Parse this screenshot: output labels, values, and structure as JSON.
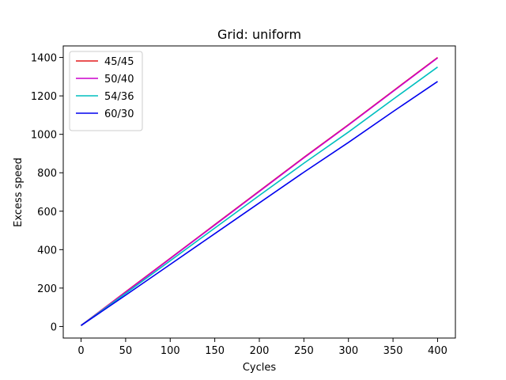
{
  "chart_data": {
    "type": "line",
    "title": "Grid: uniform",
    "xlabel": "Cycles",
    "ylabel": "Excess speed",
    "xlim": [
      -20,
      420
    ],
    "ylim": [
      -60,
      1460
    ],
    "xticks": [
      0,
      50,
      100,
      150,
      200,
      250,
      300,
      350,
      400
    ],
    "yticks": [
      0,
      200,
      400,
      600,
      800,
      1000,
      1200,
      1400
    ],
    "grid": false,
    "legend_position": "top-left",
    "series": [
      {
        "name": "45/45",
        "color": "#e41a1c",
        "x": [
          0,
          50,
          100,
          150,
          200,
          250,
          300,
          350,
          400
        ],
        "y": [
          5,
          180,
          355,
          530,
          705,
          880,
          1050,
          1225,
          1400
        ]
      },
      {
        "name": "50/40",
        "color": "#cc00cc",
        "x": [
          0,
          50,
          100,
          150,
          200,
          250,
          300,
          350,
          400
        ],
        "y": [
          5,
          178,
          353,
          528,
          703,
          878,
          1048,
          1223,
          1398
        ]
      },
      {
        "name": "54/36",
        "color": "#00bfbf",
        "x": [
          0,
          50,
          100,
          150,
          200,
          250,
          300,
          350,
          400
        ],
        "y": [
          5,
          172,
          342,
          512,
          682,
          850,
          1012,
          1182,
          1350
        ]
      },
      {
        "name": "60/30",
        "color": "#0000ee",
        "x": [
          0,
          50,
          100,
          150,
          200,
          250,
          300,
          350,
          400
        ],
        "y": [
          5,
          163,
          323,
          483,
          643,
          803,
          958,
          1118,
          1275
        ]
      }
    ]
  }
}
